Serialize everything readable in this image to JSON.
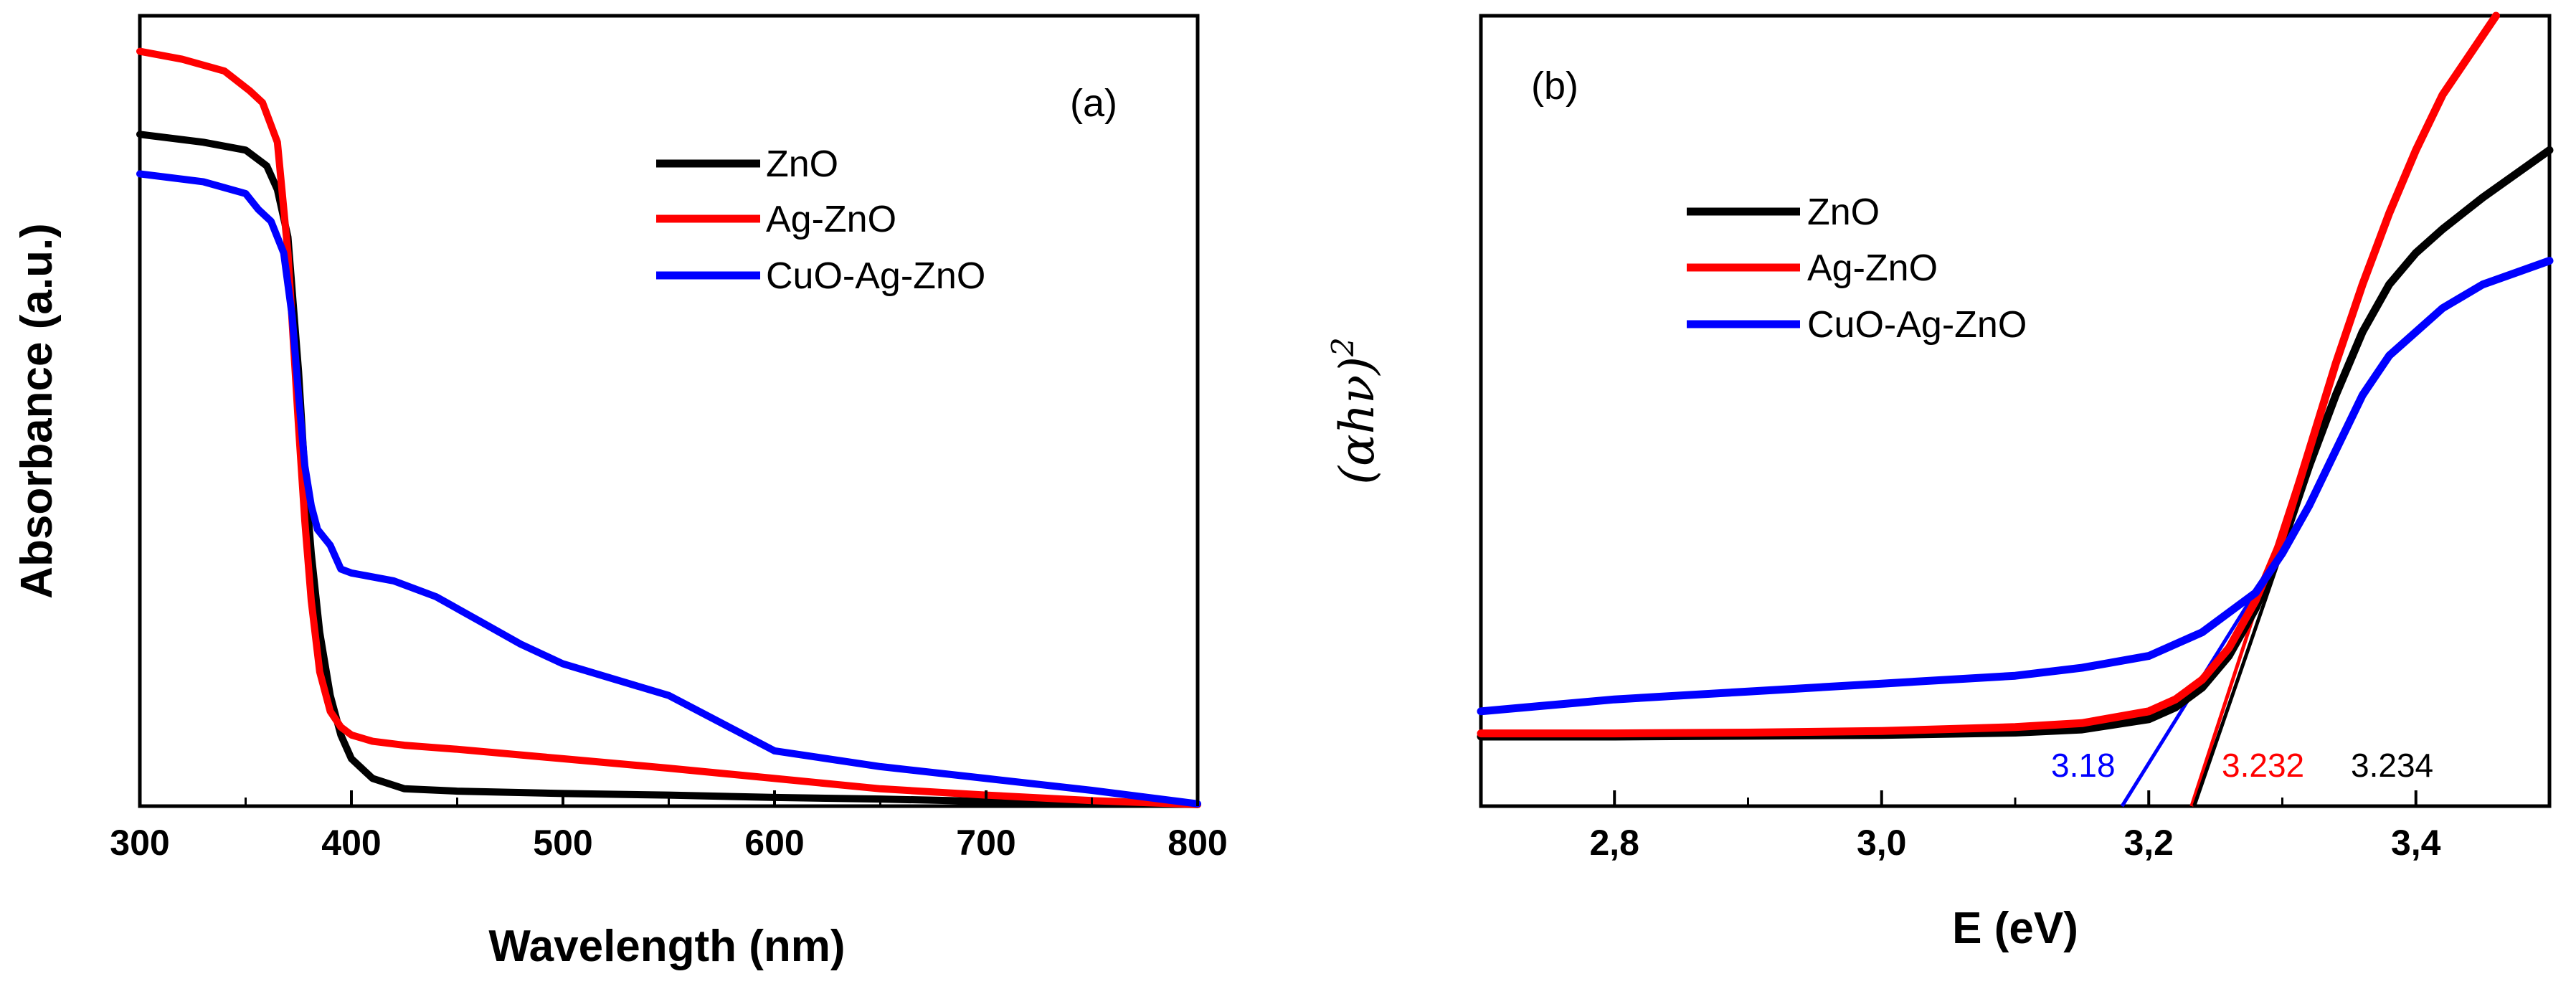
{
  "chart_data": [
    {
      "panel_label": "(a)",
      "type": "line",
      "xlabel": "Wavelength (nm)",
      "ylabel": "Absorbance (a.u.)",
      "xlim": [
        300,
        800
      ],
      "ylim": [
        0,
        1.0
      ],
      "x_ticks": [
        "300",
        "400",
        "500",
        "600",
        "700",
        "800"
      ],
      "legend_position": "top-right",
      "series": [
        {
          "name": "ZnO",
          "color": "#000000",
          "x": [
            300,
            330,
            350,
            360,
            365,
            370,
            375,
            378,
            381,
            385,
            390,
            395,
            400,
            410,
            425,
            450,
            500,
            550,
            600,
            650,
            700,
            750,
            800
          ],
          "y": [
            0.85,
            0.84,
            0.83,
            0.81,
            0.78,
            0.72,
            0.55,
            0.42,
            0.32,
            0.22,
            0.14,
            0.09,
            0.06,
            0.035,
            0.022,
            0.019,
            0.016,
            0.014,
            0.011,
            0.009,
            0.006,
            0.004,
            0.002
          ]
        },
        {
          "name": "Ag-ZnO",
          "color": "#ff0000",
          "x": [
            300,
            320,
            340,
            352,
            358,
            365,
            370,
            375,
            378,
            381,
            385,
            390,
            395,
            400,
            410,
            425,
            450,
            500,
            550,
            600,
            650,
            700,
            750,
            800
          ],
          "y": [
            0.955,
            0.945,
            0.93,
            0.905,
            0.89,
            0.84,
            0.7,
            0.48,
            0.36,
            0.26,
            0.17,
            0.12,
            0.1,
            0.09,
            0.082,
            0.077,
            0.072,
            0.06,
            0.048,
            0.035,
            0.022,
            0.014,
            0.007,
            0.002
          ]
        },
        {
          "name": "CuO-Ag-ZnO",
          "color": "#0000ff",
          "x": [
            300,
            330,
            350,
            356,
            362,
            368,
            372,
            375,
            378,
            381,
            384,
            387,
            390,
            395,
            400,
            420,
            440,
            460,
            480,
            500,
            550,
            600,
            650,
            700,
            750,
            800
          ],
          "y": [
            0.8,
            0.79,
            0.775,
            0.755,
            0.74,
            0.7,
            0.62,
            0.52,
            0.43,
            0.38,
            0.35,
            0.34,
            0.33,
            0.3,
            0.295,
            0.285,
            0.265,
            0.235,
            0.205,
            0.18,
            0.14,
            0.07,
            0.05,
            0.035,
            0.02,
            0.003
          ]
        }
      ]
    },
    {
      "panel_label": "(b)",
      "type": "line",
      "xlabel": "E (eV)",
      "ylabel_main": "(αhν)",
      "ylabel_sup": "2",
      "xlim": [
        2.7,
        3.5
      ],
      "ylim": [
        0,
        1.0
      ],
      "x_ticks": [
        "2,8",
        "3,0",
        "3,2",
        "3,4"
      ],
      "legend_position": "top-left",
      "series": [
        {
          "name": "ZnO",
          "color": "#000000",
          "x": [
            2.7,
            2.8,
            2.9,
            3.0,
            3.1,
            3.15,
            3.2,
            3.22,
            3.24,
            3.26,
            3.28,
            3.3,
            3.32,
            3.34,
            3.36,
            3.38,
            3.4,
            3.42,
            3.45,
            3.5
          ],
          "y": [
            0.088,
            0.088,
            0.089,
            0.09,
            0.093,
            0.097,
            0.11,
            0.125,
            0.15,
            0.19,
            0.25,
            0.33,
            0.43,
            0.52,
            0.6,
            0.66,
            0.7,
            0.73,
            0.77,
            0.83
          ]
        },
        {
          "name": "Ag-ZnO",
          "color": "#ff0000",
          "x": [
            2.7,
            2.8,
            2.9,
            3.0,
            3.1,
            3.15,
            3.2,
            3.22,
            3.24,
            3.26,
            3.28,
            3.3,
            3.32,
            3.34,
            3.36,
            3.38,
            3.4,
            3.42,
            3.44,
            3.46
          ],
          "y": [
            0.092,
            0.092,
            0.093,
            0.095,
            0.1,
            0.105,
            0.12,
            0.135,
            0.16,
            0.2,
            0.26,
            0.34,
            0.45,
            0.56,
            0.66,
            0.75,
            0.83,
            0.9,
            0.95,
            1.0
          ]
        },
        {
          "name": "CuO-Ag-ZnO",
          "color": "#0000ff",
          "x": [
            2.7,
            2.8,
            2.9,
            3.0,
            3.1,
            3.15,
            3.2,
            3.24,
            3.28,
            3.3,
            3.32,
            3.34,
            3.36,
            3.38,
            3.4,
            3.42,
            3.45,
            3.5
          ],
          "y": [
            0.12,
            0.135,
            0.145,
            0.155,
            0.165,
            0.175,
            0.19,
            0.22,
            0.27,
            0.32,
            0.38,
            0.45,
            0.52,
            0.57,
            0.6,
            0.63,
            0.66,
            0.69
          ]
        }
      ],
      "tangent_lines": [
        {
          "color": "#0000ff",
          "x": [
            3.18,
            3.32
          ],
          "y": [
            0.0,
            0.38
          ]
        },
        {
          "color": "#ff0000",
          "x": [
            3.232,
            3.34
          ],
          "y": [
            0.0,
            0.56
          ]
        },
        {
          "color": "#000000",
          "x": [
            3.234,
            3.34
          ],
          "y": [
            0.0,
            0.52
          ]
        }
      ],
      "annotations": [
        {
          "text": "3.18",
          "color": "#0000ff"
        },
        {
          "text": "3.232",
          "color": "#ff0000"
        },
        {
          "text": "3.234",
          "color": "#000000"
        }
      ]
    }
  ]
}
